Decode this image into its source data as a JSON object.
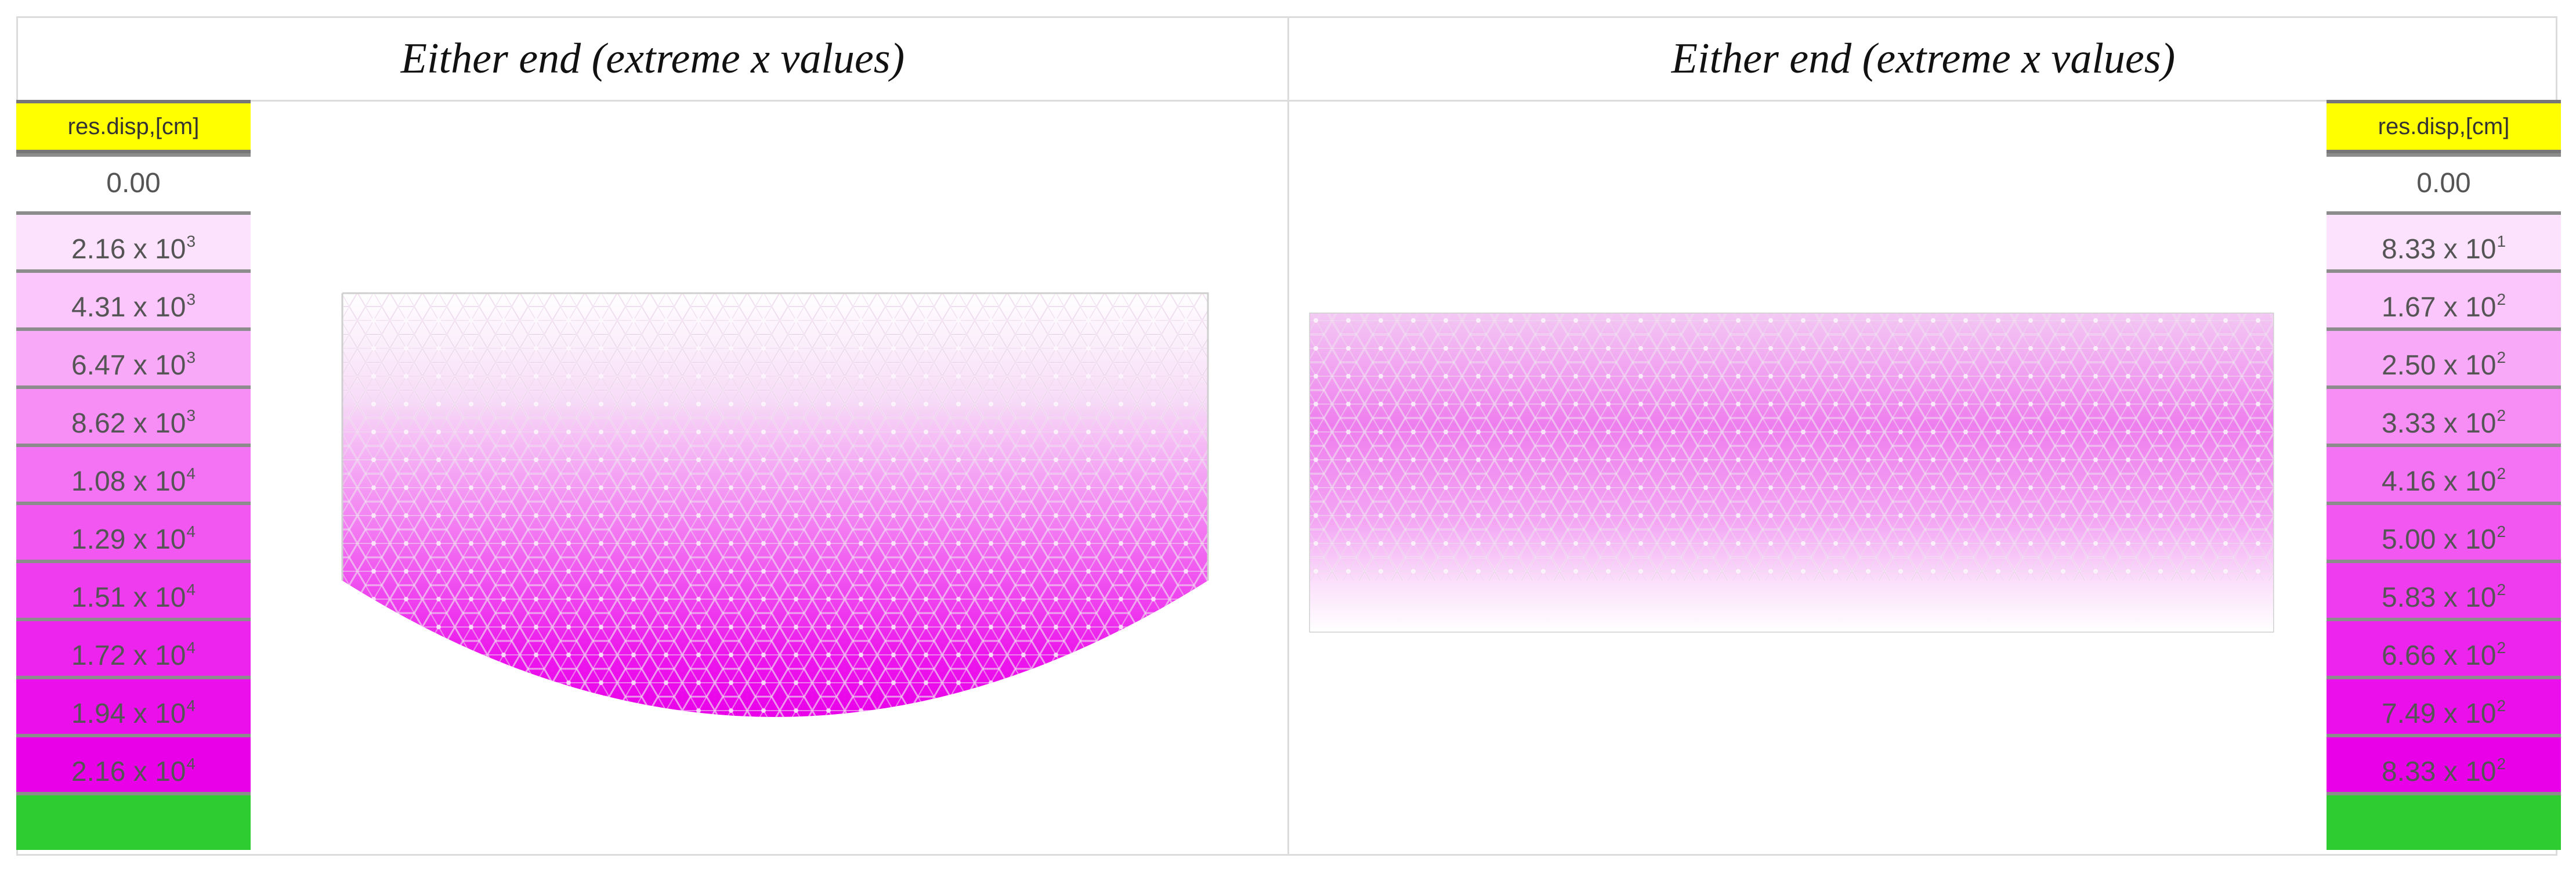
{
  "panels": [
    {
      "caption": "Either end (extreme x values)",
      "legend": {
        "title": "res.disp,[cm]",
        "rows": [
          {
            "mantissa": "0.00",
            "exponent": "",
            "color": "#ffffff",
            "text_color": "#555555"
          },
          {
            "mantissa": "2.16 x 10",
            "exponent": "3",
            "color": "#fde2fd",
            "text_color": "#555555"
          },
          {
            "mantissa": "4.31 x 10",
            "exponent": "3",
            "color": "#fbc6fb",
            "text_color": "#555555"
          },
          {
            "mantissa": "6.47 x 10",
            "exponent": "3",
            "color": "#f8aaf8",
            "text_color": "#555555"
          },
          {
            "mantissa": "8.62 x 10",
            "exponent": "3",
            "color": "#f68ef6",
            "text_color": "#555555"
          },
          {
            "mantissa": "1.08 x 10",
            "exponent": "4",
            "color": "#f473f4",
            "text_color": "#555555"
          },
          {
            "mantissa": "1.29 x 10",
            "exponent": "4",
            "color": "#f257f2",
            "text_color": "#555555"
          },
          {
            "mantissa": "1.51 x 10",
            "exponent": "4",
            "color": "#ef3cef",
            "text_color": "#555555"
          },
          {
            "mantissa": "1.72 x 10",
            "exponent": "4",
            "color": "#ed24ed",
            "text_color": "#555555"
          },
          {
            "mantissa": "1.94 x 10",
            "exponent": "4",
            "color": "#eb10eb",
            "text_color": "#555555"
          },
          {
            "mantissa": "2.16 x 10",
            "exponent": "4",
            "color": "#e900e9",
            "text_color": "#555555"
          }
        ],
        "end_color": "#2ecc30"
      }
    },
    {
      "caption": "Either end (extreme x values)",
      "legend": {
        "title": "res.disp,[cm]",
        "rows": [
          {
            "mantissa": "0.00",
            "exponent": "",
            "color": "#ffffff",
            "text_color": "#555555"
          },
          {
            "mantissa": "8.33 x 10",
            "exponent": "1",
            "color": "#fde2fd",
            "text_color": "#555555"
          },
          {
            "mantissa": "1.67 x 10",
            "exponent": "2",
            "color": "#fbc6fb",
            "text_color": "#555555"
          },
          {
            "mantissa": "2.50 x 10",
            "exponent": "2",
            "color": "#f8aaf8",
            "text_color": "#555555"
          },
          {
            "mantissa": "3.33 x 10",
            "exponent": "2",
            "color": "#f68ef6",
            "text_color": "#555555"
          },
          {
            "mantissa": "4.16 x 10",
            "exponent": "2",
            "color": "#f473f4",
            "text_color": "#555555"
          },
          {
            "mantissa": "5.00 x 10",
            "exponent": "2",
            "color": "#f257f2",
            "text_color": "#555555"
          },
          {
            "mantissa": "5.83 x 10",
            "exponent": "2",
            "color": "#ef3cef",
            "text_color": "#555555"
          },
          {
            "mantissa": "6.66 x 10",
            "exponent": "2",
            "color": "#ed24ed",
            "text_color": "#555555"
          },
          {
            "mantissa": "7.49 x 10",
            "exponent": "2",
            "color": "#eb10eb",
            "text_color": "#555555"
          },
          {
            "mantissa": "8.33 x 10",
            "exponent": "2",
            "color": "#e900e9",
            "text_color": "#555555"
          }
        ],
        "end_color": "#2ecc30"
      }
    }
  ]
}
